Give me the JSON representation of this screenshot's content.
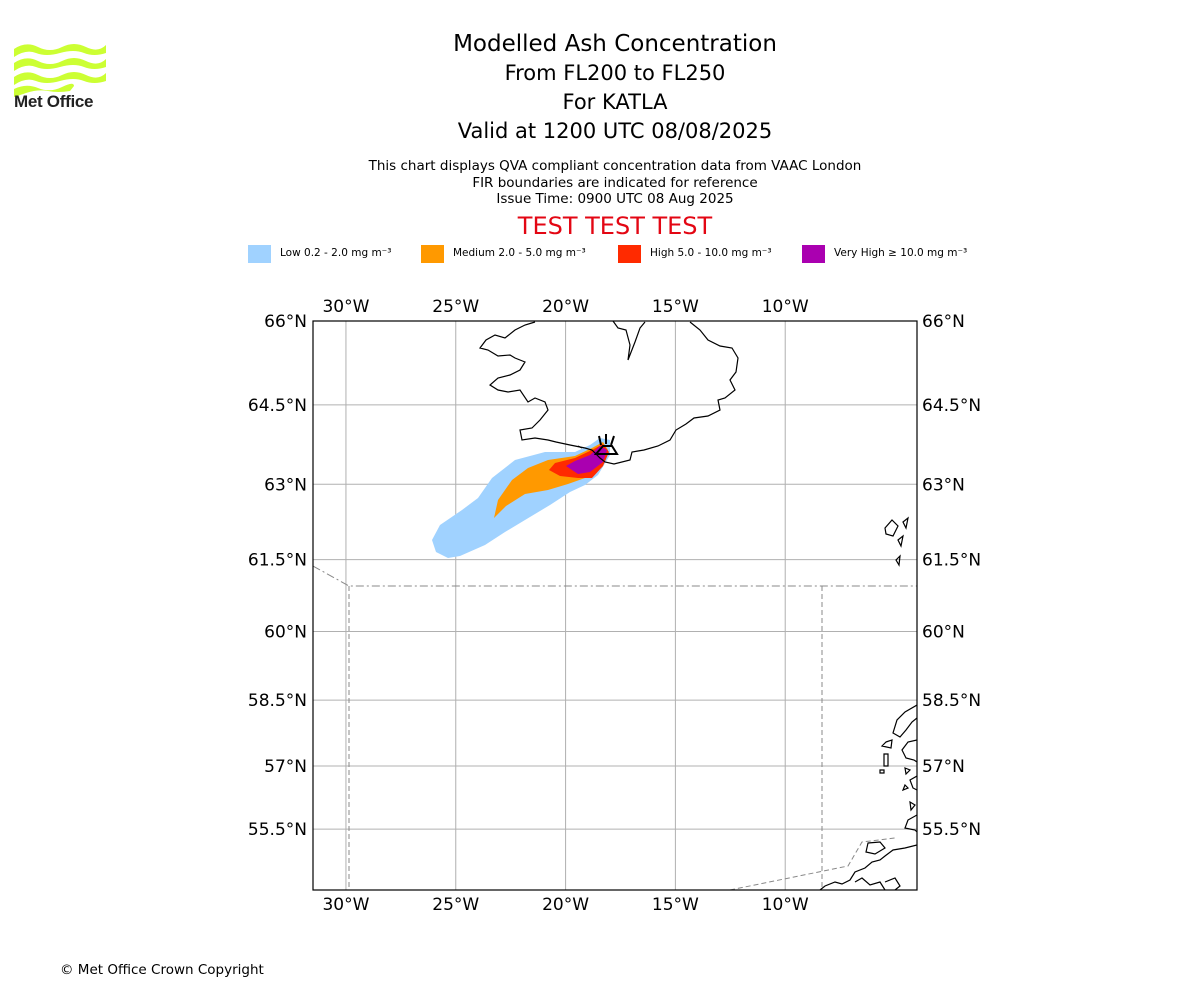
{
  "brand": {
    "name": "Met Office",
    "icon": "met-office-wave-logo",
    "logo_color": "#ccff33"
  },
  "title": {
    "main": "Modelled Ash Concentration",
    "levels": "From FL200 to FL250",
    "volcano": "For KATLA",
    "valid": "Valid at 1200 UTC 08/08/2025"
  },
  "notes": {
    "line1": "This chart displays QVA compliant concentration data from VAAC London",
    "line2": "FIR boundaries are indicated for reference",
    "line3": "Issue Time: 0900 UTC 08 Aug 2025"
  },
  "test_banner": "TEST TEST TEST",
  "legend": [
    {
      "label": "Low 0.2 - 2.0 mg m⁻³",
      "color": "#a0d2ff"
    },
    {
      "label": "Medium 2.0 - 5.0 mg m⁻³",
      "color": "#ff9900"
    },
    {
      "label": "High 5.0 - 10.0 mg m⁻³",
      "color": "#ff2a00"
    },
    {
      "label": "Very High  ≥  10.0 mg m⁻³",
      "color": "#aa00b0"
    }
  ],
  "map": {
    "lon_range": [
      -31.5,
      -4.0
    ],
    "lat_range": [
      54.0,
      66.0
    ],
    "lon_ticks": [
      {
        "value": -30,
        "label": "30°W"
      },
      {
        "value": -25,
        "label": "25°W"
      },
      {
        "value": -20,
        "label": "20°W"
      },
      {
        "value": -15,
        "label": "15°W"
      },
      {
        "value": -10,
        "label": "10°W"
      }
    ],
    "lat_ticks": [
      {
        "value": 66,
        "label": "66°N"
      },
      {
        "value": 64.5,
        "label": "64.5°N"
      },
      {
        "value": 63,
        "label": "63°N"
      },
      {
        "value": 61.5,
        "label": "61.5°N"
      },
      {
        "value": 60,
        "label": "60°N"
      },
      {
        "value": 58.5,
        "label": "58.5°N"
      },
      {
        "value": 57,
        "label": "57°N"
      },
      {
        "value": 55.5,
        "label": "55.5°N"
      }
    ],
    "grid": true,
    "volcano_marker": "volcano-icon",
    "volcano_location": {
      "lon": -19.1,
      "lat": 63.63
    },
    "gridline_color": "#b0b0b0",
    "fir_boundary_color": "#888888"
  },
  "copyright": "© Met Office Crown Copyright"
}
